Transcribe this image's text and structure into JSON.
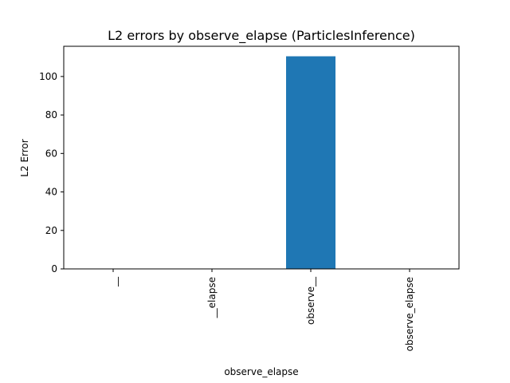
{
  "chart_data": {
    "type": "bar",
    "title": "L2 errors by observe_elapse (ParticlesInference)",
    "xlabel": "observe_elapse",
    "ylabel": "L2 Error",
    "categories": [
      "__",
      "__elapse",
      "observe__",
      "observe_elapse"
    ],
    "values": [
      0,
      0,
      110.5,
      0
    ],
    "ylim": [
      0,
      115.7
    ],
    "yticks": [
      0,
      20,
      40,
      60,
      80,
      100
    ],
    "grid": false,
    "legend": "none",
    "bar_color": "#1f77b4"
  }
}
